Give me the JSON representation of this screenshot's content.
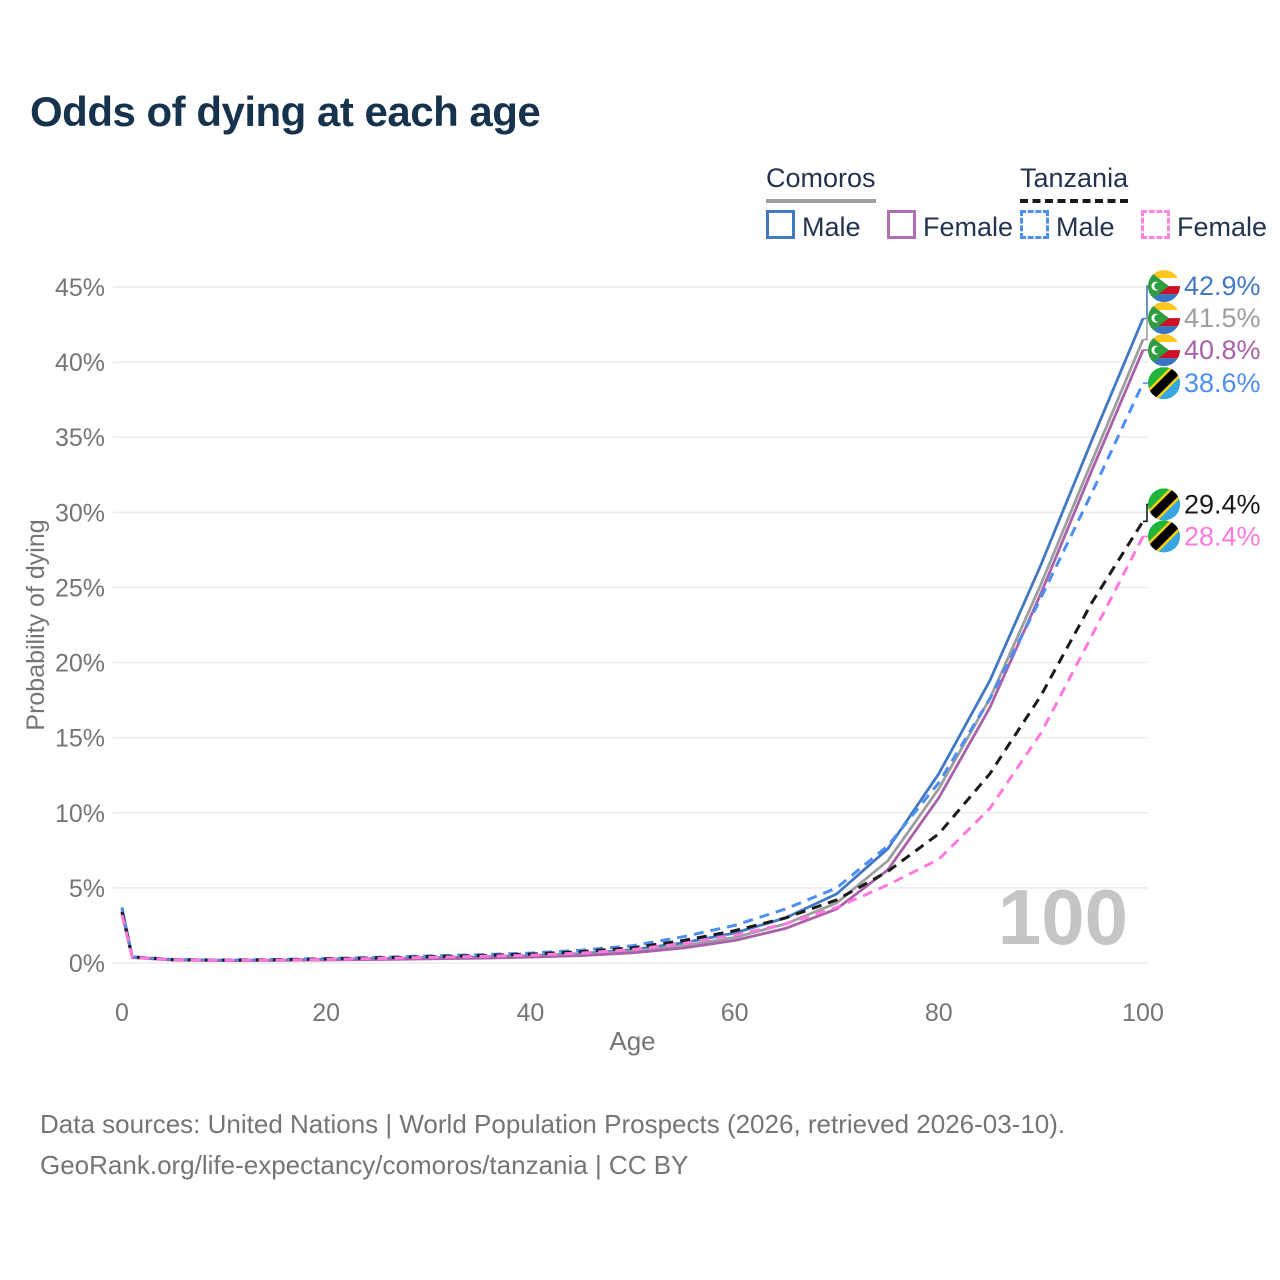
{
  "title": "Odds of dying at each age",
  "legend": {
    "groups": [
      {
        "label": "Comoros",
        "line_style": "solid",
        "line_color": "#9e9e9e",
        "items": [
          {
            "label": "Male",
            "color": "#4379c2",
            "dashed": false
          },
          {
            "label": "Female",
            "color": "#b06fb0",
            "dashed": false
          }
        ]
      },
      {
        "label": "Tanzania",
        "line_style": "dashed",
        "line_color": "#1a1a1a",
        "items": [
          {
            "label": "Male",
            "color": "#4d8ef2",
            "dashed": true
          },
          {
            "label": "Female",
            "color": "#ff85e2",
            "dashed": true
          }
        ]
      }
    ]
  },
  "chart_data": {
    "type": "line",
    "title": "Odds of dying at each age",
    "xlabel": "Age",
    "ylabel": "Probability of dying",
    "xlim": [
      0,
      100
    ],
    "ylim": [
      0,
      45
    ],
    "x_ticks": [
      0,
      20,
      40,
      60,
      80,
      100
    ],
    "y_ticks": [
      0,
      5,
      10,
      15,
      20,
      25,
      30,
      35,
      40,
      45
    ],
    "y_tick_suffix": "%",
    "grid": "horizontal",
    "legend_position": "top-right",
    "watermark_age_counter": "100",
    "series": [
      {
        "name": "Comoros Male",
        "country": "Comoros",
        "sex": "Male",
        "color": "#4379c2",
        "dashed": false,
        "flag": "comoros",
        "end_label": "42.9%",
        "points": [
          [
            0,
            3.7
          ],
          [
            1,
            0.4
          ],
          [
            5,
            0.22
          ],
          [
            10,
            0.18
          ],
          [
            15,
            0.2
          ],
          [
            20,
            0.25
          ],
          [
            25,
            0.3
          ],
          [
            30,
            0.35
          ],
          [
            35,
            0.4
          ],
          [
            40,
            0.48
          ],
          [
            45,
            0.62
          ],
          [
            50,
            0.88
          ],
          [
            55,
            1.35
          ],
          [
            60,
            2.0
          ],
          [
            65,
            3.0
          ],
          [
            70,
            4.6
          ],
          [
            75,
            7.6
          ],
          [
            80,
            12.6
          ],
          [
            85,
            18.8
          ],
          [
            90,
            26.5
          ],
          [
            95,
            34.8
          ],
          [
            100,
            42.9
          ]
        ]
      },
      {
        "name": "Comoros Both sexes",
        "country": "Comoros",
        "sex": "Both",
        "color": "#9e9e9e",
        "dashed": false,
        "flag": "comoros",
        "end_label": "41.5%",
        "points": [
          [
            0,
            3.5
          ],
          [
            1,
            0.38
          ],
          [
            5,
            0.2
          ],
          [
            10,
            0.17
          ],
          [
            15,
            0.18
          ],
          [
            20,
            0.22
          ],
          [
            25,
            0.26
          ],
          [
            30,
            0.31
          ],
          [
            35,
            0.36
          ],
          [
            40,
            0.43
          ],
          [
            45,
            0.55
          ],
          [
            50,
            0.78
          ],
          [
            55,
            1.15
          ],
          [
            60,
            1.7
          ],
          [
            65,
            2.6
          ],
          [
            70,
            4.0
          ],
          [
            75,
            6.8
          ],
          [
            80,
            11.6
          ],
          [
            85,
            17.6
          ],
          [
            90,
            25.2
          ],
          [
            95,
            33.4
          ],
          [
            100,
            41.5
          ]
        ]
      },
      {
        "name": "Comoros Female",
        "country": "Comoros",
        "sex": "Female",
        "color": "#a962a9",
        "dashed": false,
        "flag": "comoros",
        "end_label": "40.8%",
        "points": [
          [
            0,
            3.3
          ],
          [
            1,
            0.36
          ],
          [
            5,
            0.19
          ],
          [
            10,
            0.16
          ],
          [
            15,
            0.17
          ],
          [
            20,
            0.2
          ],
          [
            25,
            0.23
          ],
          [
            30,
            0.27
          ],
          [
            35,
            0.32
          ],
          [
            40,
            0.39
          ],
          [
            45,
            0.49
          ],
          [
            50,
            0.68
          ],
          [
            55,
            1.0
          ],
          [
            60,
            1.5
          ],
          [
            65,
            2.3
          ],
          [
            70,
            3.6
          ],
          [
            75,
            6.2
          ],
          [
            80,
            11.0
          ],
          [
            85,
            17.0
          ],
          [
            90,
            24.6
          ],
          [
            95,
            32.8
          ],
          [
            100,
            40.8
          ]
        ]
      },
      {
        "name": "Tanzania Male",
        "country": "Tanzania",
        "sex": "Male",
        "color": "#4d8ef2",
        "dashed": true,
        "flag": "tanzania",
        "end_label": "38.6%",
        "points": [
          [
            0,
            3.6
          ],
          [
            1,
            0.42
          ],
          [
            5,
            0.24
          ],
          [
            10,
            0.2
          ],
          [
            15,
            0.23
          ],
          [
            20,
            0.3
          ],
          [
            25,
            0.38
          ],
          [
            30,
            0.47
          ],
          [
            35,
            0.55
          ],
          [
            40,
            0.66
          ],
          [
            45,
            0.85
          ],
          [
            50,
            1.15
          ],
          [
            55,
            1.75
          ],
          [
            60,
            2.5
          ],
          [
            65,
            3.6
          ],
          [
            70,
            5.0
          ],
          [
            75,
            7.8
          ],
          [
            80,
            12.0
          ],
          [
            85,
            17.6
          ],
          [
            90,
            24.3
          ],
          [
            95,
            31.3
          ],
          [
            100,
            38.6
          ]
        ]
      },
      {
        "name": "Tanzania Both sexes",
        "country": "Tanzania",
        "sex": "Both",
        "color": "#1a1a1a",
        "dashed": true,
        "flag": "tanzania",
        "end_label": "29.4%",
        "points": [
          [
            0,
            3.4
          ],
          [
            1,
            0.4
          ],
          [
            5,
            0.22
          ],
          [
            10,
            0.19
          ],
          [
            15,
            0.21
          ],
          [
            20,
            0.27
          ],
          [
            25,
            0.34
          ],
          [
            30,
            0.42
          ],
          [
            35,
            0.49
          ],
          [
            40,
            0.59
          ],
          [
            45,
            0.76
          ],
          [
            50,
            1.02
          ],
          [
            55,
            1.5
          ],
          [
            60,
            2.15
          ],
          [
            65,
            3.0
          ],
          [
            70,
            4.2
          ],
          [
            75,
            6.1
          ],
          [
            80,
            8.6
          ],
          [
            85,
            12.6
          ],
          [
            90,
            17.8
          ],
          [
            95,
            24.0
          ],
          [
            100,
            29.4
          ]
        ]
      },
      {
        "name": "Tanzania Female",
        "country": "Tanzania",
        "sex": "Female",
        "color": "#ff79df",
        "dashed": true,
        "flag": "tanzania",
        "end_label": "28.4%",
        "points": [
          [
            0,
            3.2
          ],
          [
            1,
            0.38
          ],
          [
            5,
            0.21
          ],
          [
            10,
            0.18
          ],
          [
            15,
            0.19
          ],
          [
            20,
            0.24
          ],
          [
            25,
            0.3
          ],
          [
            30,
            0.37
          ],
          [
            35,
            0.44
          ],
          [
            40,
            0.52
          ],
          [
            45,
            0.66
          ],
          [
            50,
            0.9
          ],
          [
            55,
            1.3
          ],
          [
            60,
            1.85
          ],
          [
            65,
            2.6
          ],
          [
            70,
            3.7
          ],
          [
            75,
            5.2
          ],
          [
            80,
            6.9
          ],
          [
            85,
            10.3
          ],
          [
            90,
            15.3
          ],
          [
            95,
            21.8
          ],
          [
            100,
            28.4
          ]
        ]
      }
    ]
  },
  "footer": {
    "line1": "Data sources: United Nations | World Population Prospects (2026, retrieved 2026-03-10).",
    "line2": "GeoRank.org/life-expectancy/comoros/tanzania | CC BY"
  },
  "colors": {
    "title_text": "#16324c",
    "legend_text": "#24344f",
    "axis_text": "#757575",
    "gridline": "#ebebeb",
    "watermark": "#c5c5c5"
  }
}
